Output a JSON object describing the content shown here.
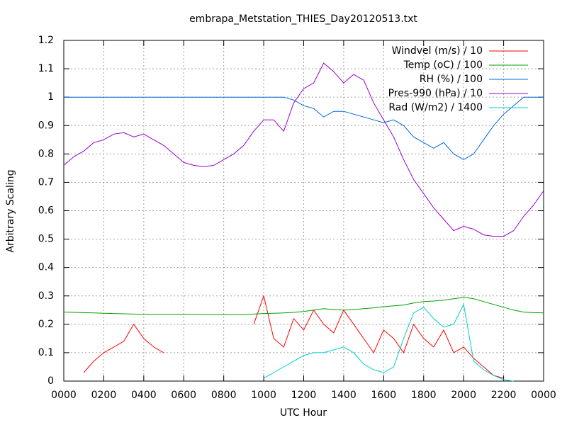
{
  "chart_data": {
    "type": "line",
    "title": "embrapa_Metstation_THIES_Day20120513.txt",
    "xlabel": "UTC Hour",
    "ylabel": "Arbitrary Scaling",
    "x": [
      0,
      0.5,
      1,
      1.5,
      2,
      2.5,
      3,
      3.5,
      4,
      4.5,
      5,
      5.5,
      6,
      6.5,
      7,
      7.5,
      8,
      8.5,
      9,
      9.5,
      10,
      10.5,
      11,
      11.5,
      12,
      12.5,
      13,
      13.5,
      14,
      14.5,
      15,
      15.5,
      16,
      16.5,
      17,
      17.5,
      18,
      18.5,
      19,
      19.5,
      20,
      20.5,
      21,
      21.5,
      22,
      22.5,
      23,
      23.5,
      24
    ],
    "series": [
      {
        "name": "Windvel (m/s) / 10",
        "color": "#ff0000",
        "values": [
          null,
          null,
          0.03,
          0.07,
          0.1,
          0.12,
          0.14,
          0.2,
          0.15,
          0.12,
          0.1,
          null,
          null,
          null,
          null,
          null,
          null,
          null,
          null,
          0.2,
          0.3,
          0.15,
          0.12,
          0.22,
          0.18,
          0.25,
          0.2,
          0.17,
          0.25,
          0.2,
          0.15,
          0.1,
          0.18,
          0.15,
          0.1,
          0.2,
          0.15,
          0.12,
          0.18,
          0.1,
          0.12,
          0.08,
          0.05,
          0.02,
          0.01,
          null,
          null,
          null,
          null
        ]
      },
      {
        "name": "Temp (oC) / 100",
        "color": "#00a000",
        "values": [
          0.243,
          0.242,
          0.241,
          0.24,
          0.239,
          0.238,
          0.237,
          0.236,
          0.235,
          0.235,
          0.235,
          0.235,
          0.235,
          0.235,
          0.234,
          0.234,
          0.234,
          0.234,
          0.234,
          0.236,
          0.238,
          0.239,
          0.24,
          0.242,
          0.245,
          0.25,
          0.255,
          0.252,
          0.25,
          0.252,
          0.255,
          0.258,
          0.262,
          0.265,
          0.268,
          0.275,
          0.28,
          0.282,
          0.285,
          0.29,
          0.295,
          0.29,
          0.28,
          0.27,
          0.26,
          0.25,
          0.243,
          0.241,
          0.24
        ]
      },
      {
        "name": "RH (%) / 100",
        "color": "#0066dd",
        "values": [
          1,
          1,
          1,
          1,
          1,
          1,
          1,
          1,
          1,
          1,
          1,
          1,
          1,
          1,
          1,
          1,
          1,
          1,
          1,
          1,
          1,
          1,
          1,
          0.99,
          0.97,
          0.96,
          0.93,
          0.95,
          0.95,
          0.94,
          0.93,
          0.92,
          0.91,
          0.92,
          0.9,
          0.86,
          0.84,
          0.82,
          0.84,
          0.8,
          0.78,
          0.8,
          0.85,
          0.9,
          0.94,
          0.97,
          1,
          1,
          1
        ]
      },
      {
        "name": "Pres-990 (hPa) / 10",
        "color": "#9900cc",
        "values": [
          0.76,
          0.79,
          0.81,
          0.84,
          0.85,
          0.87,
          0.875,
          0.86,
          0.87,
          0.85,
          0.83,
          0.8,
          0.77,
          0.76,
          0.755,
          0.76,
          0.78,
          0.8,
          0.83,
          0.88,
          0.92,
          0.92,
          0.88,
          0.98,
          1.03,
          1.05,
          1.12,
          1.09,
          1.05,
          1.08,
          1.06,
          0.98,
          0.92,
          0.86,
          0.78,
          0.71,
          0.66,
          0.61,
          0.57,
          0.53,
          0.545,
          0.535,
          0.515,
          0.51,
          0.51,
          0.53,
          0.58,
          0.62,
          0.67
        ]
      },
      {
        "name": "Rad (W/m2) / 1400",
        "color": "#00cccc",
        "values": [
          null,
          null,
          null,
          null,
          null,
          null,
          null,
          null,
          null,
          null,
          null,
          null,
          null,
          null,
          null,
          null,
          null,
          null,
          null,
          null,
          0.01,
          0.03,
          0.05,
          0.07,
          0.09,
          0.1,
          0.1,
          0.11,
          0.12,
          0.1,
          0.06,
          0.04,
          0.03,
          0.05,
          0.15,
          0.24,
          0.26,
          0.22,
          0.19,
          0.2,
          0.27,
          0.07,
          0.04,
          0.02,
          0.005,
          0,
          null,
          null,
          null
        ]
      }
    ],
    "xlim": [
      0,
      24
    ],
    "xticks": [
      {
        "value": 0,
        "label": "0000"
      },
      {
        "value": 2,
        "label": "0200"
      },
      {
        "value": 4,
        "label": "0400"
      },
      {
        "value": 6,
        "label": "0600"
      },
      {
        "value": 8,
        "label": "0800"
      },
      {
        "value": 10,
        "label": "1000"
      },
      {
        "value": 12,
        "label": "1200"
      },
      {
        "value": 14,
        "label": "1400"
      },
      {
        "value": 16,
        "label": "1600"
      },
      {
        "value": 18,
        "label": "1800"
      },
      {
        "value": 20,
        "label": "2000"
      },
      {
        "value": 22,
        "label": "2200"
      },
      {
        "value": 24,
        "label": "0000"
      }
    ],
    "ylim": [
      0,
      1.2
    ],
    "yticks": [
      0,
      0.1,
      0.2,
      0.3,
      0.4,
      0.5,
      0.6,
      0.7,
      0.8,
      0.9,
      1,
      1.1,
      1.2
    ],
    "grid": true,
    "legend": "upper-right"
  }
}
